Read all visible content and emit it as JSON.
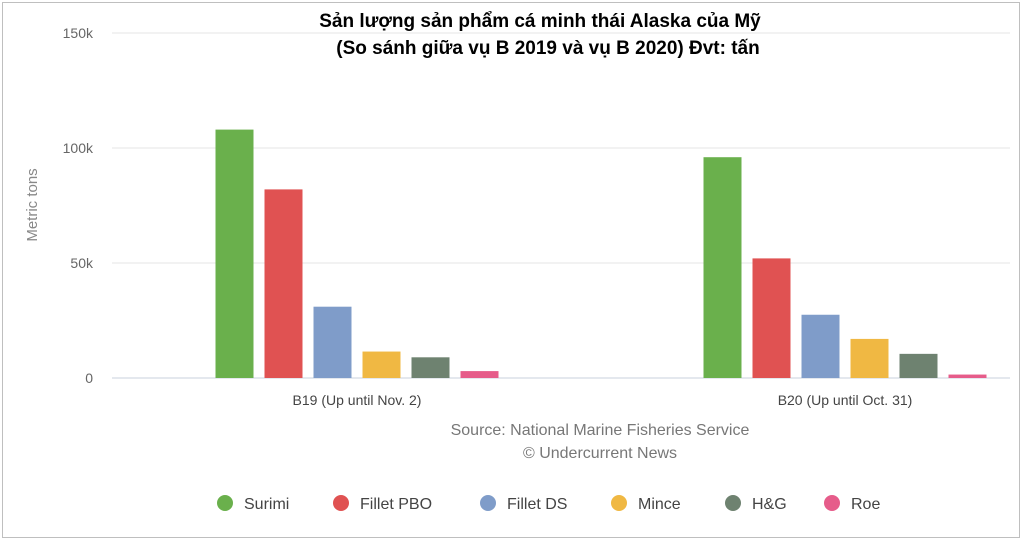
{
  "chart_data": {
    "type": "bar",
    "title": "Sản lượng sản phẩm cá minh thái Alaska của Mỹ",
    "subtitle": "(So sánh giữa vụ B 2019 và vụ B 2020) Đvt: tấn",
    "ylabel": "Metric tons",
    "xlabel": "",
    "ylim": [
      0,
      150000
    ],
    "yticks": [
      {
        "value": 0,
        "label": "0"
      },
      {
        "value": 50000,
        "label": "50k"
      },
      {
        "value": 100000,
        "label": "100k"
      },
      {
        "value": 150000,
        "label": "150k"
      }
    ],
    "categories": [
      "B19 (Up until Nov. 2)",
      "B20 (Up until Oct. 31)"
    ],
    "series": [
      {
        "name": "Surimi",
        "color": "#6ab04c",
        "values": [
          108000,
          96000
        ]
      },
      {
        "name": "Fillet PBO",
        "color": "#e05252",
        "values": [
          82000,
          52000
        ]
      },
      {
        "name": "Fillet DS",
        "color": "#7f9cc9",
        "values": [
          31000,
          27500
        ]
      },
      {
        "name": "Mince",
        "color": "#f0b843",
        "values": [
          11500,
          17000
        ]
      },
      {
        "name": "H&G",
        "color": "#6e8270",
        "values": [
          9000,
          10500
        ]
      },
      {
        "name": "Roe",
        "color": "#e65c8a",
        "values": [
          3000,
          1500
        ]
      }
    ],
    "grid": true,
    "legend": "bottom",
    "source_line1": "Source: National Marine Fisheries Service",
    "source_line2": "© Undercurrent News"
  }
}
